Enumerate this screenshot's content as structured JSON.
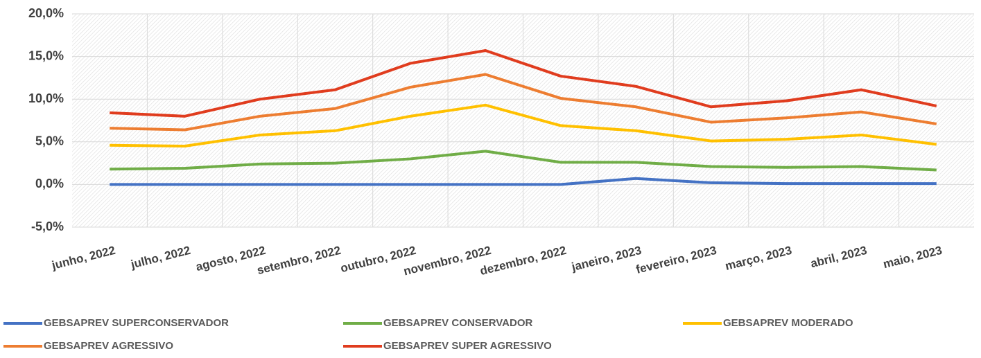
{
  "chart_data": {
    "type": "line",
    "categories": [
      "junho, 2022",
      "julho, 2022",
      "agosto, 2022",
      "setembro, 2022",
      "outubro, 2022",
      "novembro, 2022",
      "dezembro, 2022",
      "janeiro, 2023",
      "fevereiro, 2023",
      "março, 2023",
      "abril, 2023",
      "maio, 2023"
    ],
    "series": [
      {
        "name": "GEBSAPREV SUPERCONSERVADOR",
        "color": "#4472c4",
        "values": [
          0.0,
          0.0,
          0.0,
          0.0,
          0.0,
          0.0,
          0.0,
          0.7,
          0.2,
          0.1,
          0.1,
          0.1
        ]
      },
      {
        "name": "GEBSAPREV CONSERVADOR",
        "color": "#70ad47",
        "values": [
          1.8,
          1.9,
          2.4,
          2.5,
          3.0,
          3.9,
          2.6,
          2.6,
          2.1,
          2.0,
          2.1,
          1.7
        ]
      },
      {
        "name": "GEBSAPREV MODERADO",
        "color": "#ffc000",
        "values": [
          4.6,
          4.5,
          5.8,
          6.3,
          8.0,
          9.3,
          6.9,
          6.3,
          5.1,
          5.3,
          5.8,
          4.7
        ]
      },
      {
        "name": "GEBSAPREV AGRESSIVO",
        "color": "#ed7d31",
        "values": [
          6.6,
          6.4,
          8.0,
          8.9,
          11.4,
          12.9,
          10.1,
          9.1,
          7.3,
          7.8,
          8.5,
          7.1
        ]
      },
      {
        "name": "GEBSAPREV SUPER AGRESSIVO",
        "color": "#e03c1e",
        "values": [
          8.4,
          8.0,
          10.0,
          11.1,
          14.2,
          15.7,
          12.7,
          11.5,
          9.1,
          9.8,
          11.1,
          9.2
        ]
      }
    ],
    "ylim": [
      -5,
      20
    ],
    "yticks": [
      {
        "value": -5,
        "label": "-5,0%"
      },
      {
        "value": 0,
        "label": "0,0%"
      },
      {
        "value": 5,
        "label": "5,0%"
      },
      {
        "value": 10,
        "label": "10,0%"
      },
      {
        "value": 15,
        "label": "15,0%"
      },
      {
        "value": 20,
        "label": "20,0%"
      }
    ],
    "grid": true,
    "legend": "bottom"
  }
}
